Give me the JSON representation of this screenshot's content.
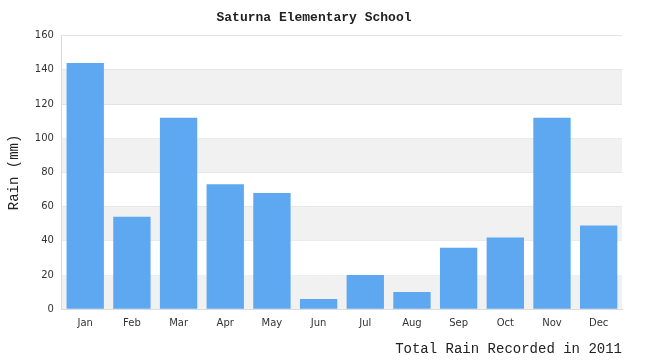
{
  "chart_data": {
    "type": "bar",
    "title": "Saturna Elementary School",
    "x_label": "Total Rain Recorded in 2011",
    "y_label": "Rain (mm)",
    "categories": [
      "Jan",
      "Feb",
      "Mar",
      "Apr",
      "May",
      "Jun",
      "Jul",
      "Aug",
      "Sep",
      "Oct",
      "Nov",
      "Dec"
    ],
    "values": [
      144,
      54,
      112,
      73,
      68,
      6,
      20,
      10,
      36,
      42,
      112,
      49
    ],
    "color": "#5ea8f2",
    "ylim": [
      0,
      160
    ],
    "yticks": [
      0,
      20,
      40,
      60,
      80,
      100,
      120,
      140,
      160
    ],
    "grid": true
  }
}
